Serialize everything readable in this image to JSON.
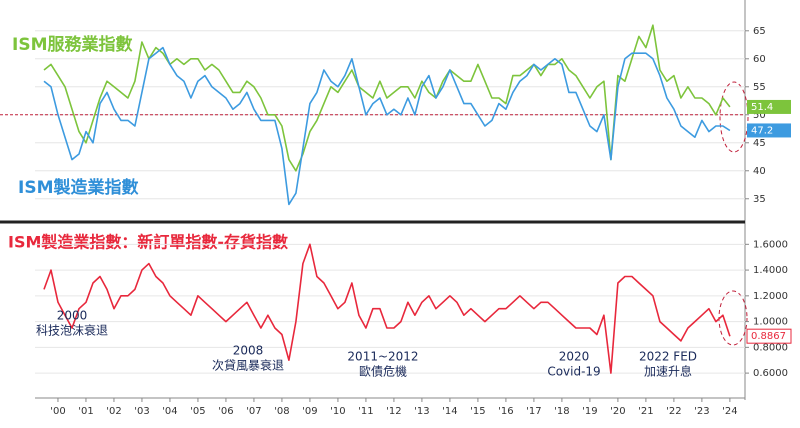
{
  "chart_data": [
    {
      "type": "line",
      "title": "ISM服務業指數",
      "subtitle": "ISM製造業指數",
      "x": [
        2000,
        2000.25,
        2000.5,
        2000.75,
        2001,
        2001.25,
        2001.5,
        2001.75,
        2002,
        2002.25,
        2002.5,
        2002.75,
        2003,
        2003.25,
        2003.5,
        2003.75,
        2004,
        2004.25,
        2004.5,
        2004.75,
        2005,
        2005.25,
        2005.5,
        2005.75,
        2006,
        2006.25,
        2006.5,
        2006.75,
        2007,
        2007.25,
        2007.5,
        2007.75,
        2008,
        2008.25,
        2008.5,
        2008.75,
        2009,
        2009.25,
        2009.5,
        2009.75,
        2010,
        2010.25,
        2010.5,
        2010.75,
        2011,
        2011.25,
        2011.5,
        2011.75,
        2012,
        2012.25,
        2012.5,
        2012.75,
        2013,
        2013.25,
        2013.5,
        2013.75,
        2014,
        2014.25,
        2014.5,
        2014.75,
        2015,
        2015.25,
        2015.5,
        2015.75,
        2016,
        2016.25,
        2016.5,
        2016.75,
        2017,
        2017.25,
        2017.5,
        2017.75,
        2018,
        2018.25,
        2018.5,
        2018.75,
        2019,
        2019.25,
        2019.5,
        2019.75,
        2020,
        2020.25,
        2020.5,
        2020.75,
        2021,
        2021.25,
        2021.5,
        2021.75,
        2022,
        2022.25,
        2022.5,
        2022.75,
        2023,
        2023.25,
        2023.5,
        2023.75,
        2024,
        2024.25,
        2024.5
      ],
      "series": [
        {
          "name": "ISM服務業指數",
          "color": "#7dc43c",
          "last_value": 51.4,
          "values": [
            58,
            59,
            57,
            55,
            51,
            47,
            45,
            49,
            53,
            56,
            55,
            54,
            53,
            56,
            63,
            60,
            62,
            61,
            59,
            60,
            59,
            60,
            60,
            58,
            59,
            58,
            56,
            54,
            54,
            56,
            55,
            53,
            50,
            50,
            48,
            42,
            40,
            43,
            47,
            49,
            52,
            55,
            54,
            56,
            58,
            55,
            54,
            53,
            56,
            53,
            54,
            55,
            55,
            53,
            56,
            54,
            53,
            56,
            58,
            57,
            56,
            56,
            59,
            56,
            53,
            53,
            52,
            57,
            57,
            58,
            59,
            57,
            59,
            59,
            60,
            58,
            57,
            55,
            53,
            55,
            56,
            42,
            57,
            56,
            60,
            64,
            62,
            66,
            58,
            56,
            57,
            53,
            55,
            53,
            53,
            52,
            50,
            53,
            51.4
          ]
        },
        {
          "name": "ISM製造業指數",
          "color": "#3d9be0",
          "last_value": 47.2,
          "values": [
            56,
            55,
            50,
            46,
            42,
            43,
            47,
            45,
            52,
            54,
            51,
            49,
            49,
            48,
            54,
            60,
            61,
            62,
            59,
            57,
            56,
            53,
            56,
            57,
            55,
            54,
            53,
            51,
            52,
            54,
            51,
            49,
            49,
            49,
            44,
            34,
            36,
            44,
            52,
            54,
            58,
            56,
            55,
            57,
            60,
            55,
            50,
            52,
            53,
            50,
            51,
            50,
            53,
            50,
            55,
            57,
            53,
            55,
            58,
            55,
            52,
            52,
            50,
            48,
            49,
            52,
            51,
            54,
            56,
            57,
            59,
            58,
            59,
            60,
            59,
            54,
            54,
            51,
            48,
            47,
            50,
            42,
            55,
            60,
            61,
            61,
            61,
            60,
            57,
            53,
            51,
            48,
            47,
            46,
            49,
            47,
            48,
            48,
            47.2
          ]
        }
      ],
      "ref_line": 50,
      "ylim": [
        32.1,
        70.5
      ],
      "yticks": [
        35,
        40,
        45,
        50,
        55,
        60,
        65
      ]
    },
    {
      "type": "line",
      "title": "ISM製造業指數：新訂單指數-存貨指數",
      "x": [
        2000,
        2000.25,
        2000.5,
        2000.75,
        2001,
        2001.25,
        2001.5,
        2001.75,
        2002,
        2002.25,
        2002.5,
        2002.75,
        2003,
        2003.25,
        2003.5,
        2003.75,
        2004,
        2004.25,
        2004.5,
        2004.75,
        2005,
        2005.25,
        2005.5,
        2005.75,
        2006,
        2006.25,
        2006.5,
        2006.75,
        2007,
        2007.25,
        2007.5,
        2007.75,
        2008,
        2008.25,
        2008.5,
        2008.75,
        2009,
        2009.25,
        2009.5,
        2009.75,
        2010,
        2010.25,
        2010.5,
        2010.75,
        2011,
        2011.25,
        2011.5,
        2011.75,
        2012,
        2012.25,
        2012.5,
        2012.75,
        2013,
        2013.25,
        2013.5,
        2013.75,
        2014,
        2014.25,
        2014.5,
        2014.75,
        2015,
        2015.25,
        2015.5,
        2015.75,
        2016,
        2016.25,
        2016.5,
        2016.75,
        2017,
        2017.25,
        2017.5,
        2017.75,
        2018,
        2018.25,
        2018.5,
        2018.75,
        2019,
        2019.25,
        2019.5,
        2019.75,
        2020,
        2020.25,
        2020.5,
        2020.75,
        2021,
        2021.25,
        2021.5,
        2021.75,
        2022,
        2022.25,
        2022.5,
        2022.75,
        2023,
        2023.25,
        2023.5,
        2023.75,
        2024,
        2024.25,
        2024.5
      ],
      "series": [
        {
          "name": "ISM製造業指數：新訂單指數-存貨指數",
          "color": "#e8283c",
          "last_value": 0.8867,
          "values": [
            1.25,
            1.4,
            1.15,
            1.05,
            0.95,
            1.1,
            1.15,
            1.3,
            1.35,
            1.25,
            1.1,
            1.2,
            1.2,
            1.25,
            1.4,
            1.45,
            1.35,
            1.3,
            1.2,
            1.15,
            1.1,
            1.05,
            1.2,
            1.15,
            1.1,
            1.05,
            1.0,
            1.05,
            1.1,
            1.15,
            1.05,
            0.95,
            1.05,
            0.95,
            0.9,
            0.7,
            1.0,
            1.45,
            1.6,
            1.35,
            1.3,
            1.2,
            1.1,
            1.15,
            1.3,
            1.05,
            0.95,
            1.1,
            1.1,
            0.95,
            0.95,
            1.0,
            1.15,
            1.05,
            1.15,
            1.2,
            1.1,
            1.15,
            1.2,
            1.15,
            1.05,
            1.1,
            1.05,
            1.0,
            1.05,
            1.1,
            1.1,
            1.15,
            1.2,
            1.15,
            1.1,
            1.15,
            1.15,
            1.1,
            1.05,
            1.0,
            0.95,
            0.95,
            0.95,
            0.9,
            1.05,
            0.6,
            1.3,
            1.35,
            1.35,
            1.3,
            1.25,
            1.2,
            1.0,
            0.95,
            0.9,
            0.85,
            0.95,
            1.0,
            1.05,
            1.1,
            1.0,
            1.05,
            0.8867
          ]
        }
      ],
      "annotations": [
        [
          "2000",
          "科技泡沫衰退"
        ],
        [
          "2008",
          "次貸風暴衰退"
        ],
        [
          "2011~2012",
          "歐債危機"
        ],
        [
          "2020",
          "Covid-19"
        ],
        [
          "2022 FED",
          "加速升息"
        ]
      ],
      "ylim": [
        0.43,
        1.75
      ],
      "yticks": [
        {
          "value": 0.6,
          "label": "0.6000"
        },
        {
          "value": 0.8,
          "label": "0.8000"
        },
        {
          "value": 1.0,
          "label": "1.0000"
        },
        {
          "value": 1.2,
          "label": "1.2000"
        },
        {
          "value": 1.4,
          "label": "1.4000"
        },
        {
          "value": 1.6,
          "label": "1.6000"
        }
      ],
      "xlim": [
        1999.68,
        2025.04
      ],
      "xticks": [
        {
          "value": 2000.5,
          "label": "'00"
        },
        {
          "value": 2001.5,
          "label": "'01"
        },
        {
          "value": 2002.5,
          "label": "'02"
        },
        {
          "value": 2003.5,
          "label": "'03"
        },
        {
          "value": 2004.5,
          "label": "'04"
        },
        {
          "value": 2005.5,
          "label": "'05"
        },
        {
          "value": 2006.5,
          "label": "'06"
        },
        {
          "value": 2007.5,
          "label": "'07"
        },
        {
          "value": 2008.5,
          "label": "'08"
        },
        {
          "value": 2009.5,
          "label": "'09"
        },
        {
          "value": 2010.5,
          "label": "'10"
        },
        {
          "value": 2011.5,
          "label": "'11"
        },
        {
          "value": 2012.5,
          "label": "'12"
        },
        {
          "value": 2013.5,
          "label": "'13"
        },
        {
          "value": 2014.5,
          "label": "'14"
        },
        {
          "value": 2015.5,
          "label": "'15"
        },
        {
          "value": 2016.5,
          "label": "'16"
        },
        {
          "value": 2017.5,
          "label": "'17"
        },
        {
          "value": 2018.5,
          "label": "'18"
        },
        {
          "value": 2019.5,
          "label": "'19"
        },
        {
          "value": 2020.5,
          "label": "'20"
        },
        {
          "value": 2021.5,
          "label": "'21"
        },
        {
          "value": 2022.5,
          "label": "'22"
        },
        {
          "value": 2023.5,
          "label": "'23"
        },
        {
          "value": 2024.5,
          "label": "'24"
        }
      ]
    }
  ]
}
